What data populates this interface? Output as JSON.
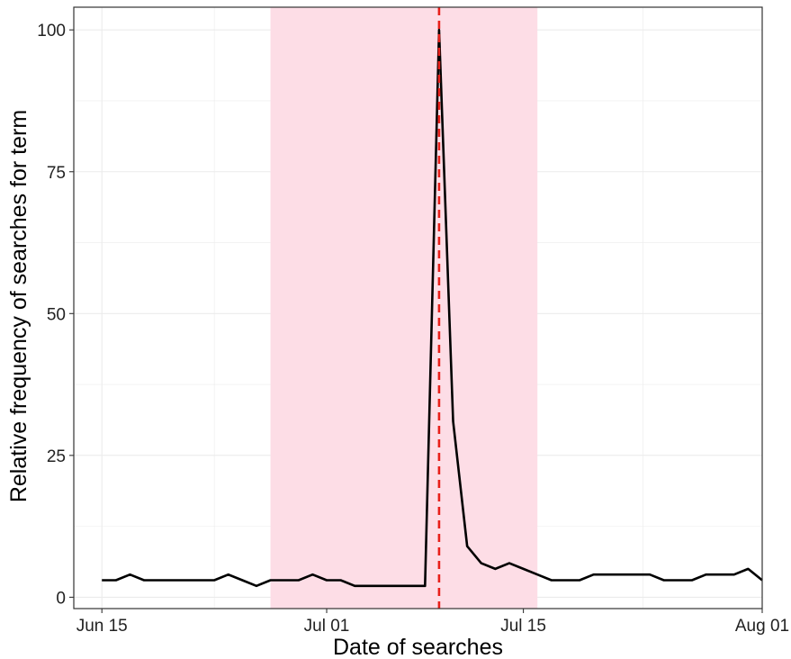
{
  "chart_data": {
    "type": "line",
    "xlabel": "Date of searches",
    "ylabel": "Relative frequency of searches for term",
    "x_axis": {
      "type": "date",
      "range": [
        "2020-06-13",
        "2020-08-01"
      ],
      "ticks": [
        {
          "date": "2020-06-15",
          "label": "Jun 15"
        },
        {
          "date": "2020-07-01",
          "label": "Jul 01"
        },
        {
          "date": "2020-07-15",
          "label": "Jul 15"
        },
        {
          "date": "2020-08-01",
          "label": "Aug 01"
        }
      ]
    },
    "y_axis": {
      "range": [
        -2,
        104
      ],
      "ticks": [
        0,
        25,
        50,
        75,
        100
      ]
    },
    "grid": true,
    "series": [
      {
        "color": "#000000",
        "points": [
          {
            "x": "2020-06-15",
            "y": 3
          },
          {
            "x": "2020-06-16",
            "y": 3
          },
          {
            "x": "2020-06-17",
            "y": 4
          },
          {
            "x": "2020-06-18",
            "y": 3
          },
          {
            "x": "2020-06-19",
            "y": 3
          },
          {
            "x": "2020-06-20",
            "y": 3
          },
          {
            "x": "2020-06-21",
            "y": 3
          },
          {
            "x": "2020-06-22",
            "y": 3
          },
          {
            "x": "2020-06-23",
            "y": 3
          },
          {
            "x": "2020-06-24",
            "y": 4
          },
          {
            "x": "2020-06-25",
            "y": 3
          },
          {
            "x": "2020-06-26",
            "y": 2
          },
          {
            "x": "2020-06-27",
            "y": 3
          },
          {
            "x": "2020-06-28",
            "y": 3
          },
          {
            "x": "2020-06-29",
            "y": 3
          },
          {
            "x": "2020-06-30",
            "y": 4
          },
          {
            "x": "2020-07-01",
            "y": 3
          },
          {
            "x": "2020-07-02",
            "y": 3
          },
          {
            "x": "2020-07-03",
            "y": 2
          },
          {
            "x": "2020-07-04",
            "y": 2
          },
          {
            "x": "2020-07-05",
            "y": 2
          },
          {
            "x": "2020-07-06",
            "y": 2
          },
          {
            "x": "2020-07-07",
            "y": 2
          },
          {
            "x": "2020-07-08",
            "y": 2
          },
          {
            "x": "2020-07-09",
            "y": 100
          },
          {
            "x": "2020-07-10",
            "y": 31
          },
          {
            "x": "2020-07-11",
            "y": 9
          },
          {
            "x": "2020-07-12",
            "y": 6
          },
          {
            "x": "2020-07-13",
            "y": 5
          },
          {
            "x": "2020-07-14",
            "y": 6
          },
          {
            "x": "2020-07-15",
            "y": 5
          },
          {
            "x": "2020-07-16",
            "y": 4
          },
          {
            "x": "2020-07-17",
            "y": 3
          },
          {
            "x": "2020-07-18",
            "y": 3
          },
          {
            "x": "2020-07-19",
            "y": 3
          },
          {
            "x": "2020-07-20",
            "y": 4
          },
          {
            "x": "2020-07-21",
            "y": 4
          },
          {
            "x": "2020-07-22",
            "y": 4
          },
          {
            "x": "2020-07-23",
            "y": 4
          },
          {
            "x": "2020-07-24",
            "y": 4
          },
          {
            "x": "2020-07-25",
            "y": 3
          },
          {
            "x": "2020-07-26",
            "y": 3
          },
          {
            "x": "2020-07-27",
            "y": 3
          },
          {
            "x": "2020-07-28",
            "y": 4
          },
          {
            "x": "2020-07-29",
            "y": 4
          },
          {
            "x": "2020-07-30",
            "y": 4
          },
          {
            "x": "2020-07-31",
            "y": 5
          },
          {
            "x": "2020-08-01",
            "y": 3
          }
        ]
      }
    ],
    "shaded_region": {
      "x_start": "2020-06-27",
      "x_end": "2020-07-16",
      "color": "#fddde6"
    },
    "reference_line": {
      "x": "2020-07-09",
      "color": "#e8201a",
      "style": "dashed"
    },
    "colors": {
      "line": "#000000",
      "panel_border": "#333333",
      "grid": "#ebebeb"
    }
  }
}
